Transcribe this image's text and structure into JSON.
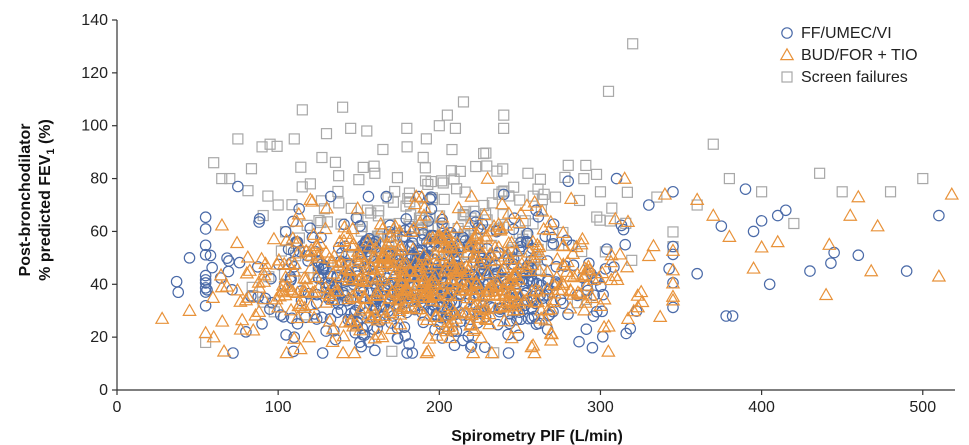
{
  "chart_data": {
    "type": "scatter",
    "xlabel": "Spirometry PIF (L/min)",
    "ylabel_line1": "Post-bronchodilator",
    "ylabel_line2_prefix": "% predicted FEV",
    "ylabel_line2_subscript": "1",
    "ylabel_line2_suffix": " (%)",
    "xlim": [
      0,
      520
    ],
    "ylim": [
      0,
      140
    ],
    "xticks": [
      0,
      100,
      200,
      300,
      400,
      500
    ],
    "yticks": [
      0,
      20,
      40,
      60,
      80,
      100,
      120,
      140
    ],
    "legend_position": "top-right",
    "series": [
      {
        "name": "FF/UMEC/VI",
        "marker": "circle",
        "color": "#4a6aa8",
        "cluster": {
          "n": 620,
          "x_mean": 195,
          "x_sd": 58,
          "y_mean": 42,
          "y_sd": 12
        },
        "points": [
          [
            37,
            41
          ],
          [
            38,
            37
          ],
          [
            45,
            50
          ],
          [
            72,
            14
          ],
          [
            75,
            77
          ],
          [
            80,
            22
          ],
          [
            90,
            25
          ],
          [
            110,
            20
          ],
          [
            160,
            15
          ],
          [
            180,
            14
          ],
          [
            220,
            17
          ],
          [
            240,
            74
          ],
          [
            260,
            68
          ],
          [
            280,
            79
          ],
          [
            295,
            16
          ],
          [
            310,
            80
          ],
          [
            330,
            70
          ],
          [
            345,
            75
          ],
          [
            360,
            44
          ],
          [
            375,
            62
          ],
          [
            378,
            28
          ],
          [
            382,
            28
          ],
          [
            390,
            76
          ],
          [
            395,
            60
          ],
          [
            400,
            64
          ],
          [
            405,
            40
          ],
          [
            410,
            66
          ],
          [
            415,
            68
          ],
          [
            430,
            45
          ],
          [
            443,
            48
          ],
          [
            445,
            52
          ],
          [
            460,
            51
          ],
          [
            490,
            45
          ],
          [
            510,
            66
          ]
        ]
      },
      {
        "name": "BUD/FOR + TIO",
        "marker": "triangle",
        "color": "#e8923a",
        "cluster": {
          "n": 620,
          "x_mean": 198,
          "x_sd": 60,
          "y_mean": 42,
          "y_sd": 12
        },
        "points": [
          [
            28,
            27
          ],
          [
            45,
            30
          ],
          [
            60,
            20
          ],
          [
            120,
            72
          ],
          [
            230,
            80
          ],
          [
            315,
            80
          ],
          [
            340,
            74
          ],
          [
            360,
            72
          ],
          [
            370,
            66
          ],
          [
            380,
            58
          ],
          [
            395,
            46
          ],
          [
            400,
            54
          ],
          [
            410,
            56
          ],
          [
            440,
            36
          ],
          [
            442,
            55
          ],
          [
            455,
            66
          ],
          [
            460,
            73
          ],
          [
            468,
            45
          ],
          [
            472,
            62
          ],
          [
            510,
            43
          ],
          [
            518,
            74
          ]
        ]
      },
      {
        "name": "Screen failures",
        "marker": "square",
        "color": "#a8a8a8",
        "cluster": {
          "n": 230,
          "x_mean": 200,
          "x_sd": 60,
          "y_mean": 60,
          "y_sd": 15
        },
        "points": [
          [
            60,
            86
          ],
          [
            65,
            80
          ],
          [
            70,
            80
          ],
          [
            75,
            95
          ],
          [
            90,
            92
          ],
          [
            95,
            93
          ],
          [
            100,
            70
          ],
          [
            110,
            95
          ],
          [
            115,
            106
          ],
          [
            120,
            78
          ],
          [
            130,
            97
          ],
          [
            140,
            107
          ],
          [
            145,
            99
          ],
          [
            155,
            98
          ],
          [
            160,
            82
          ],
          [
            165,
            91
          ],
          [
            180,
            92
          ],
          [
            190,
            88
          ],
          [
            200,
            100
          ],
          [
            205,
            104
          ],
          [
            210,
            99
          ],
          [
            215,
            109
          ],
          [
            240,
            104
          ],
          [
            255,
            82
          ],
          [
            280,
            85
          ],
          [
            300,
            75
          ],
          [
            305,
            113
          ],
          [
            320,
            131
          ],
          [
            335,
            73
          ],
          [
            360,
            70
          ],
          [
            370,
            93
          ],
          [
            380,
            80
          ],
          [
            400,
            75
          ],
          [
            420,
            63
          ],
          [
            436,
            82
          ],
          [
            450,
            75
          ],
          [
            480,
            75
          ],
          [
            500,
            80
          ]
        ]
      }
    ]
  }
}
